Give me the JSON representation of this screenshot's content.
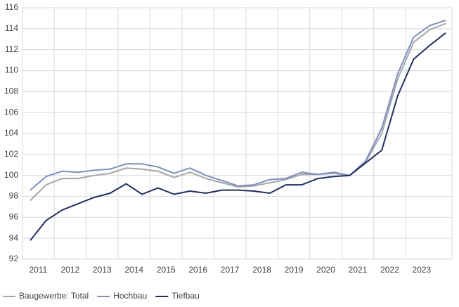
{
  "chart_data": {
    "type": "line",
    "categories": [
      "2011",
      null,
      "2012",
      null,
      "2013",
      null,
      "2014",
      null,
      "2015",
      null,
      "2016",
      null,
      "2017",
      null,
      "2018",
      null,
      "2019",
      null,
      "2020",
      null,
      "2021",
      null,
      "2022",
      null,
      "2023",
      null,
      null
    ],
    "series": [
      {
        "name": "Baugewerbe: Total",
        "color": "#a6a6a6",
        "values": [
          97.6,
          99.1,
          99.7,
          99.7,
          100.0,
          100.2,
          100.7,
          100.6,
          100.4,
          99.8,
          100.3,
          99.7,
          99.3,
          98.9,
          99.0,
          99.3,
          99.6,
          100.1,
          100.1,
          100.2,
          100.0,
          101.3,
          104.0,
          109.2,
          112.7,
          113.9,
          114.5
        ]
      },
      {
        "name": "Hochbau",
        "color": "#7b8fc7",
        "values": [
          98.6,
          99.9,
          100.4,
          100.3,
          100.5,
          100.6,
          101.1,
          101.1,
          100.8,
          100.2,
          100.7,
          100.0,
          99.5,
          99.0,
          99.1,
          99.6,
          99.7,
          100.3,
          100.1,
          100.3,
          100.0,
          101.4,
          104.5,
          109.7,
          113.2,
          114.3,
          114.8
        ]
      },
      {
        "name": "Tiefbau",
        "color": "#1f2d6b",
        "values": [
          93.8,
          95.7,
          96.7,
          97.3,
          97.9,
          98.3,
          99.2,
          98.2,
          98.8,
          98.2,
          98.5,
          98.3,
          98.6,
          98.6,
          98.5,
          98.3,
          99.1,
          99.1,
          99.7,
          99.9,
          100.0,
          101.2,
          102.4,
          107.6,
          111.1,
          112.4,
          113.6
        ]
      }
    ],
    "ylim": [
      92,
      116
    ],
    "yticks": [
      92,
      94,
      96,
      98,
      100,
      102,
      104,
      106,
      108,
      110,
      112,
      114,
      116
    ],
    "grid": true,
    "legend": "bottom-left"
  }
}
